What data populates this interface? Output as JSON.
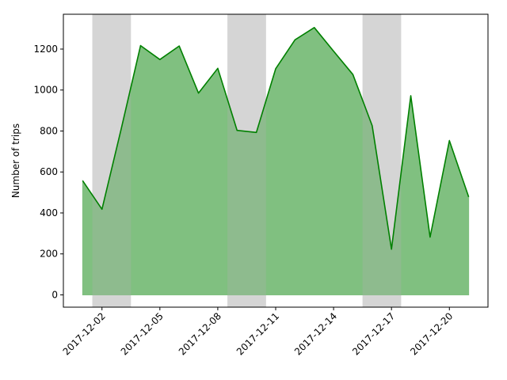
{
  "chart_data": {
    "type": "area",
    "title": "",
    "xlabel": "",
    "ylabel": "Number of trips",
    "x": [
      "2017-12-01",
      "2017-12-02",
      "2017-12-03",
      "2017-12-04",
      "2017-12-05",
      "2017-12-06",
      "2017-12-07",
      "2017-12-08",
      "2017-12-09",
      "2017-12-10",
      "2017-12-11",
      "2017-12-12",
      "2017-12-13",
      "2017-12-14",
      "2017-12-15",
      "2017-12-16",
      "2017-12-17",
      "2017-12-18",
      "2017-12-19",
      "2017-12-20",
      "2017-12-21"
    ],
    "values": [
      557,
      418,
      812,
      1217,
      1149,
      1215,
      985,
      1106,
      803,
      793,
      1104,
      1245,
      1305,
      1190,
      1076,
      826,
      223,
      972,
      282,
      753,
      478
    ],
    "x_ticks": [
      "2017-12-02",
      "2017-12-05",
      "2017-12-08",
      "2017-12-11",
      "2017-12-14",
      "2017-12-17",
      "2017-12-20"
    ],
    "y_ticks": [
      0,
      200,
      400,
      600,
      800,
      1000,
      1200
    ],
    "xlim": [
      "2017-11-30",
      "2017-12-22"
    ],
    "ylim": [
      -60,
      1370
    ],
    "shaded_ranges": [
      [
        "2017-12-01T12:00",
        "2017-12-03T12:00"
      ],
      [
        "2017-12-08T12:00",
        "2017-12-10T12:00"
      ],
      [
        "2017-12-15T12:00",
        "2017-12-17T12:00"
      ]
    ],
    "colors": {
      "line": "#008000",
      "fill": "#80c080",
      "shade": "#e5e5e5"
    },
    "grid": false,
    "legend": "none"
  }
}
